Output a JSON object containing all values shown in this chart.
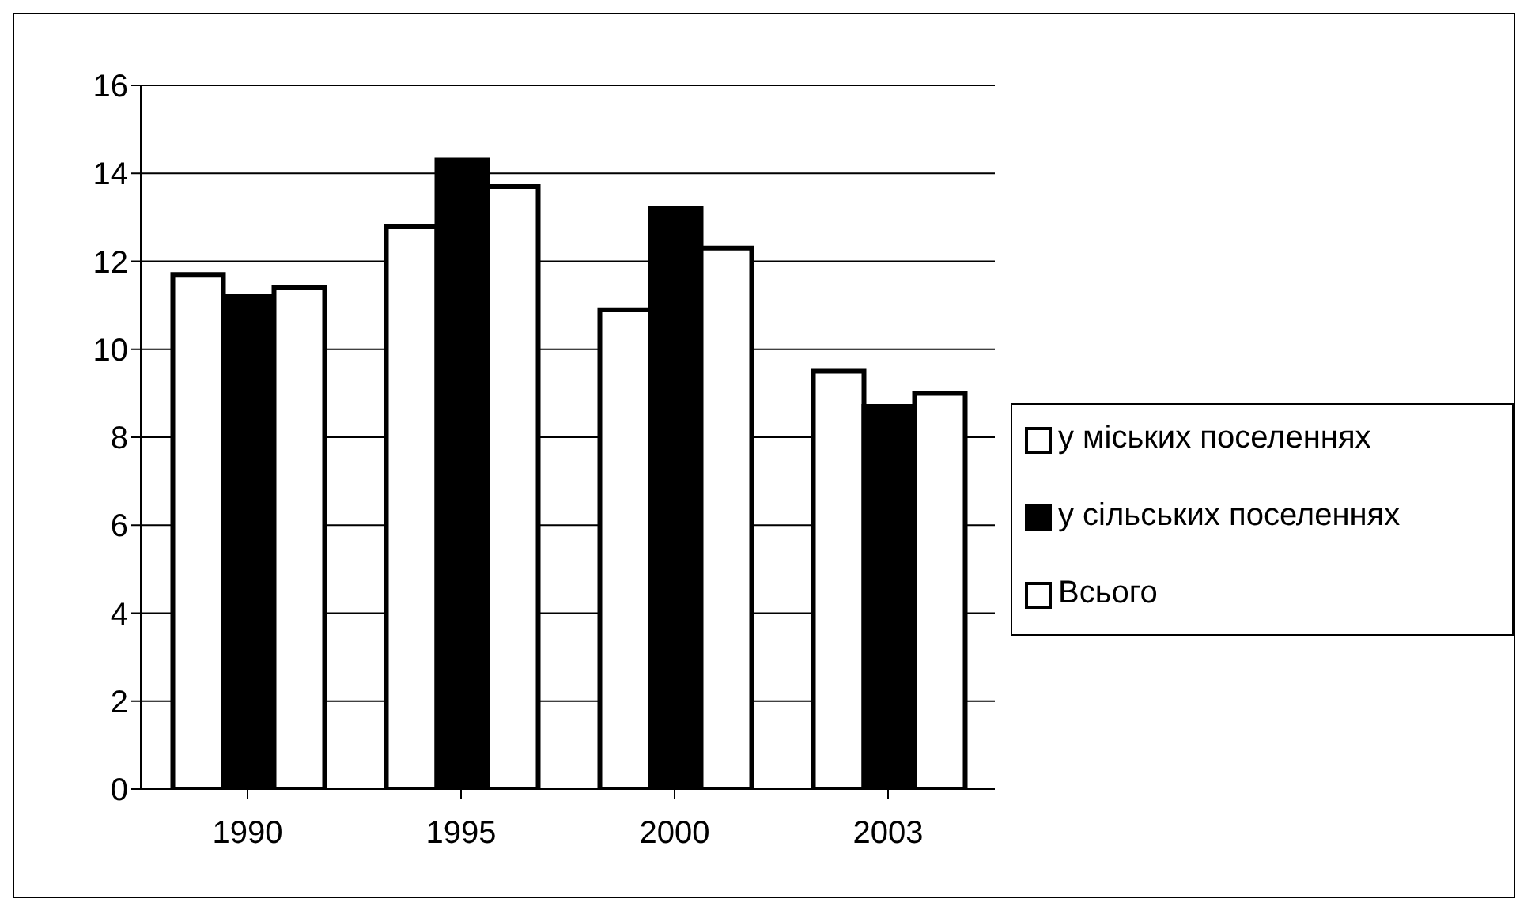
{
  "chart_data": {
    "type": "bar",
    "categories": [
      "1990",
      "1995",
      "2000",
      "2003"
    ],
    "series": [
      {
        "name": "у міських поселеннях",
        "color": "#ffffff",
        "values": [
          11.7,
          12.8,
          10.9,
          9.5
        ]
      },
      {
        "name": "у сільських поселеннях",
        "color": "#000000",
        "values": [
          11.2,
          14.3,
          13.2,
          8.7
        ]
      },
      {
        "name": "Всього",
        "color": "#ffffff",
        "values": [
          11.4,
          13.7,
          12.3,
          9.0
        ]
      }
    ],
    "ylim": [
      0,
      16
    ],
    "yticks": [
      0,
      2,
      4,
      6,
      8,
      10,
      12,
      14,
      16
    ],
    "grid": "y",
    "legend": "right"
  }
}
